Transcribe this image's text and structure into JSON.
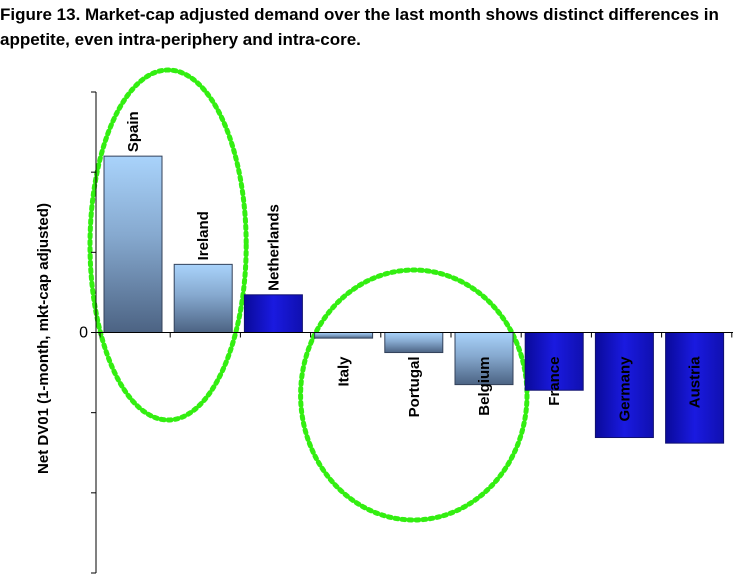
{
  "title": "Figure 13. Market-cap adjusted demand over the last month shows distinct differences in appetite, even intra-periphery and intra-core.",
  "chart_data": {
    "type": "bar",
    "ylabel": "Net DV01 (1-month, mkt-cap adjusted)",
    "ylim": [
      -3,
      3
    ],
    "yticks": [
      3,
      2,
      1,
      0,
      -1,
      -2,
      -3
    ],
    "ytick_labels": [
      "",
      "",
      "",
      "0",
      "",
      "",
      ""
    ],
    "grid": false,
    "categories": [
      "Spain",
      "Ireland",
      "Netherlands",
      "Italy",
      "Portugal",
      "Belgium",
      "France",
      "Germany",
      "Austria"
    ],
    "values": [
      2.2,
      0.85,
      0.47,
      -0.07,
      -0.25,
      -0.65,
      -0.72,
      -1.31,
      -1.38
    ],
    "bar_styles": [
      "light-gradient",
      "light-gradient",
      "dark-blue",
      "light-gradient",
      "light-gradient",
      "light-gradient",
      "dark-blue",
      "dark-blue",
      "dark-blue"
    ],
    "annotations": [
      {
        "type": "dotted-ellipse",
        "color": "#33ee11",
        "encloses": [
          "Spain",
          "Ireland"
        ]
      },
      {
        "type": "dotted-ellipse",
        "color": "#33ee11",
        "encloses": [
          "Italy",
          "Portugal",
          "Belgium"
        ]
      }
    ]
  }
}
